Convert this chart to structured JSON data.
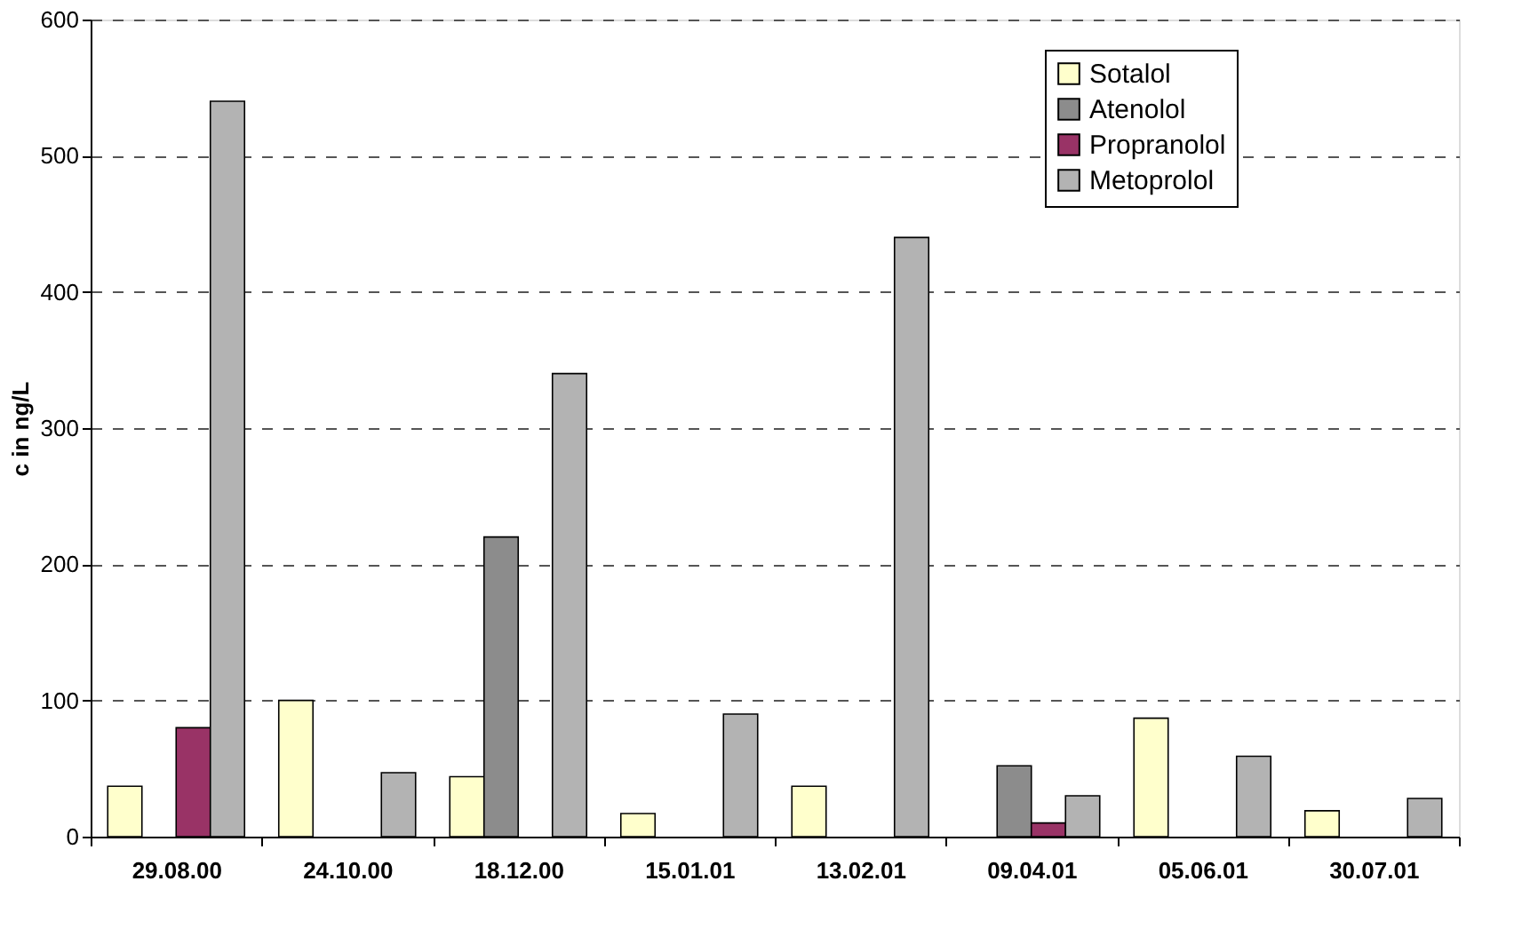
{
  "chart_data": {
    "type": "bar",
    "ylabel": "c in ng/L",
    "categories": [
      "29.08.00",
      "24.10.00",
      "18.12.00",
      "15.01.01",
      "13.02.01",
      "09.04.01",
      "05.06.01",
      "30.07.01"
    ],
    "series": [
      {
        "name": "Sotalol",
        "color": "#ffffcc",
        "values": [
          37,
          100,
          44,
          17,
          37,
          null,
          87,
          19
        ]
      },
      {
        "name": "Atenolol",
        "color": "#8c8c8c",
        "values": [
          null,
          null,
          220,
          null,
          null,
          52,
          null,
          null
        ]
      },
      {
        "name": "Propranolol",
        "color": "#993366",
        "values": [
          80,
          null,
          null,
          null,
          null,
          10,
          null,
          null
        ]
      },
      {
        "name": "Metoprolol",
        "color": "#b3b3b3",
        "values": [
          540,
          47,
          340,
          90,
          440,
          30,
          59,
          28
        ]
      }
    ],
    "ylim": [
      0,
      600
    ],
    "yticks": [
      0,
      100,
      200,
      300,
      400,
      500,
      600
    ],
    "grid": "y",
    "legend": "top right"
  }
}
